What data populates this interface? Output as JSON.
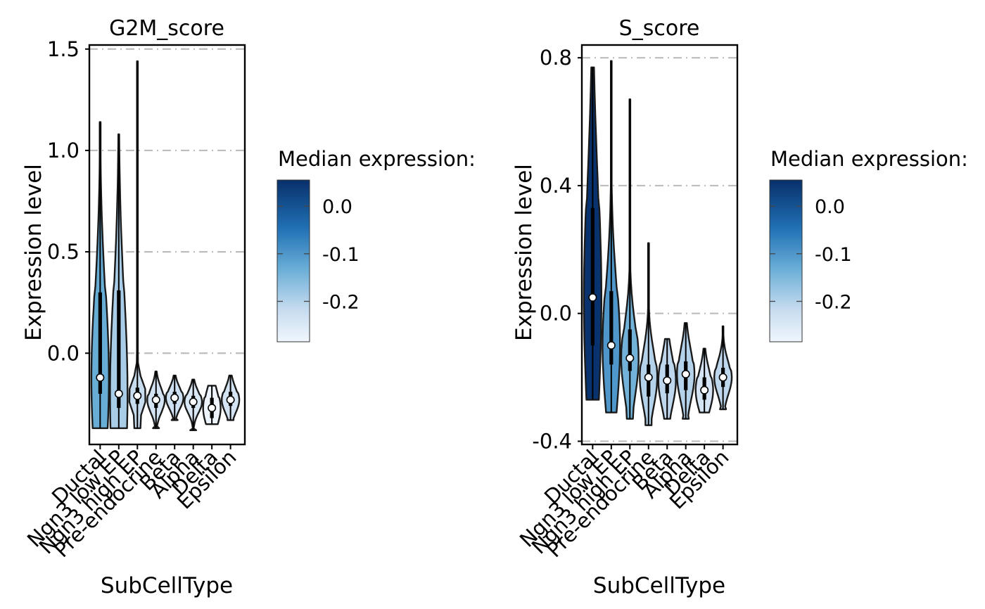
{
  "colors": {
    "violin_stroke": "#1a1a1a",
    "gridline": "#bdbdbd",
    "median_point_fill": "#ffffff",
    "colorscale_low": "#eef5fc",
    "colorscale_mid": "#6aaed6",
    "colorscale_high": "#08306b"
  },
  "chart_data": [
    {
      "type": "violin",
      "title": "G2M_score",
      "xlabel": "SubCellType",
      "ylabel": "Expression level",
      "ylim": [
        -0.45,
        1.52
      ],
      "yticks": [
        0.0,
        0.5,
        1.0,
        1.5
      ],
      "ytick_labels": [
        "0.0",
        "0.5",
        "1.0",
        "1.5"
      ],
      "grid": "horizontal dashed",
      "categories": [
        "Ductal",
        "Ngn3 low EP",
        "Ngn3 high EP",
        "Pre-endocrine",
        "Beta",
        "Alpha",
        "Delta",
        "Epsilon"
      ],
      "violins": [
        {
          "min": -0.37,
          "q1": -0.2,
          "median": -0.12,
          "q3": 0.3,
          "max": 1.14,
          "median_expression": -0.13
        },
        {
          "min": -0.37,
          "q1": -0.27,
          "median": -0.2,
          "q3": 0.31,
          "max": 1.08,
          "median_expression": -0.19
        },
        {
          "min": -0.37,
          "q1": -0.25,
          "median": -0.21,
          "q3": -0.17,
          "max": 1.44,
          "median_expression": -0.22
        },
        {
          "min": -0.37,
          "q1": -0.27,
          "median": -0.23,
          "q3": -0.2,
          "max": -0.09,
          "median_expression": -0.24
        },
        {
          "min": -0.33,
          "q1": -0.25,
          "median": -0.22,
          "q3": -0.19,
          "max": -0.11,
          "median_expression": -0.23
        },
        {
          "min": -0.38,
          "q1": -0.27,
          "median": -0.24,
          "q3": -0.21,
          "max": -0.13,
          "median_expression": -0.25
        },
        {
          "min": -0.35,
          "q1": -0.32,
          "median": -0.27,
          "q3": -0.22,
          "max": -0.16,
          "median_expression": -0.28
        },
        {
          "min": -0.33,
          "q1": -0.26,
          "median": -0.23,
          "q3": -0.19,
          "max": -0.11,
          "median_expression": -0.24
        }
      ],
      "legend": {
        "title": "Median expression:",
        "ticks": [
          0.0,
          -0.1,
          -0.2
        ],
        "tick_labels": [
          "0.0",
          "-0.1",
          "-0.2"
        ],
        "range": [
          -0.285,
          0.055
        ],
        "placement": "right"
      }
    },
    {
      "type": "violin",
      "title": "S_score",
      "xlabel": "SubCellType",
      "ylabel": "Expression level",
      "ylim": [
        -0.41,
        0.84
      ],
      "yticks": [
        -0.4,
        0.0,
        0.4,
        0.8
      ],
      "ytick_labels": [
        "-0.4",
        "0.0",
        "0.4",
        "0.8"
      ],
      "grid": "horizontal dashed",
      "categories": [
        "Ductal",
        "Ngn3 low EP",
        "Ngn3 high EP",
        "Pre-endocrine",
        "Beta",
        "Alpha",
        "Delta",
        "Epsilon"
      ],
      "violins": [
        {
          "min": -0.27,
          "q1": -0.1,
          "median": 0.05,
          "q3": 0.33,
          "max": 0.77,
          "median_expression": 0.05
        },
        {
          "min": -0.31,
          "q1": -0.16,
          "median": -0.1,
          "q3": 0.07,
          "max": 0.79,
          "median_expression": -0.1
        },
        {
          "min": -0.33,
          "q1": -0.18,
          "median": -0.14,
          "q3": -0.05,
          "max": 0.67,
          "median_expression": -0.14
        },
        {
          "min": -0.35,
          "q1": -0.26,
          "median": -0.2,
          "q3": -0.16,
          "max": 0.22,
          "median_expression": -0.2
        },
        {
          "min": -0.33,
          "q1": -0.25,
          "median": -0.21,
          "q3": -0.16,
          "max": -0.08,
          "median_expression": -0.21
        },
        {
          "min": -0.33,
          "q1": -0.24,
          "median": -0.19,
          "q3": -0.15,
          "max": -0.03,
          "median_expression": -0.2
        },
        {
          "min": -0.31,
          "q1": -0.27,
          "median": -0.24,
          "q3": -0.2,
          "max": -0.11,
          "median_expression": -0.24
        },
        {
          "min": -0.3,
          "q1": -0.23,
          "median": -0.2,
          "q3": -0.17,
          "max": -0.04,
          "median_expression": -0.21
        }
      ],
      "legend": {
        "title": "Median expression:",
        "ticks": [
          0.0,
          -0.1,
          -0.2
        ],
        "tick_labels": [
          "0.0",
          "-0.1",
          "-0.2"
        ],
        "range": [
          -0.285,
          0.055
        ],
        "placement": "right"
      }
    }
  ]
}
